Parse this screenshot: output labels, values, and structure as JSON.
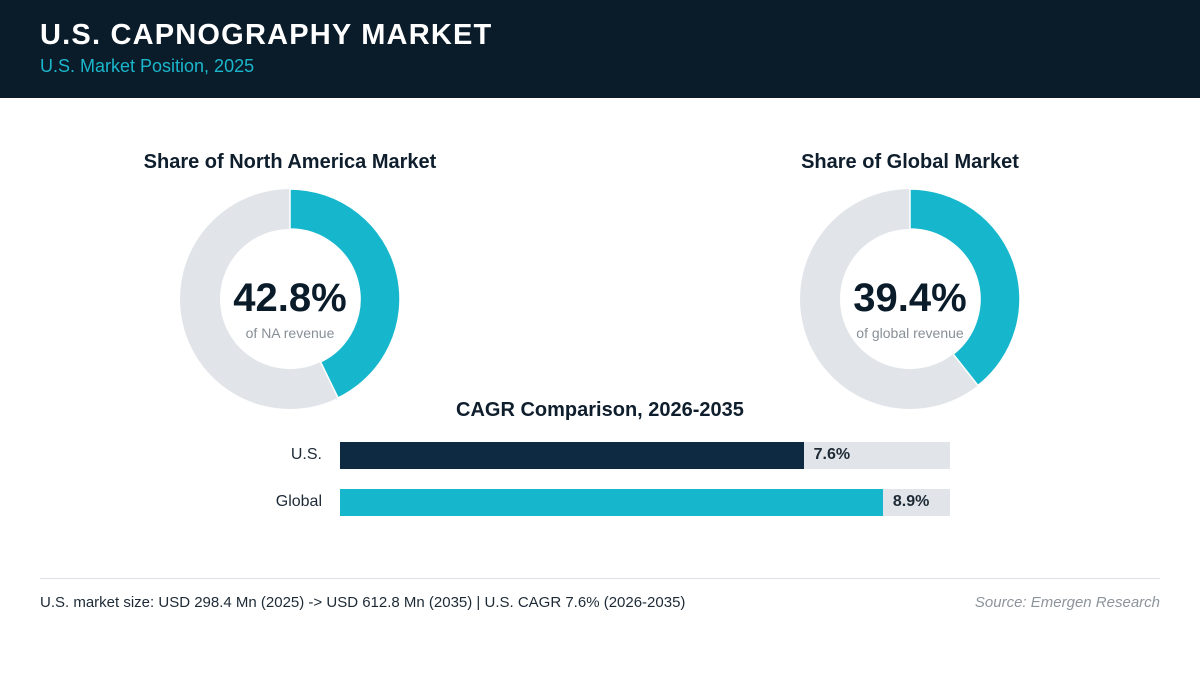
{
  "header": {
    "title": "U.S. CAPNOGRAPHY MARKET",
    "subtitle": "U.S. Market Position, 2025"
  },
  "colors": {
    "header_bg": "#0a1b2a",
    "accent": "#16b7cc",
    "dark_bar": "#0e2a42",
    "track": "#e1e5e9"
  },
  "chart_data": [
    {
      "type": "pie",
      "variant": "donut",
      "title": "Share of North America Market",
      "value": 42.8,
      "value_label": "42.8%",
      "caption": "of NA revenue"
    },
    {
      "type": "pie",
      "variant": "donut",
      "title": "Share of Global Market",
      "value": 39.4,
      "value_label": "39.4%",
      "caption": "of global revenue"
    },
    {
      "type": "bar",
      "orientation": "horizontal",
      "title": "CAGR Comparison, 2026-2035",
      "categories": [
        "U.S.",
        "Global"
      ],
      "values": [
        7.6,
        8.9
      ],
      "value_labels": [
        "7.6%",
        "8.9%"
      ],
      "xlim": [
        0,
        10
      ]
    }
  ],
  "footer": {
    "note": "U.S. market size: USD 298.4 Mn (2025) -> USD 612.8 Mn (2035)  |  U.S. CAGR 7.6% (2026-2035)",
    "source": "Source: Emergen Research"
  }
}
